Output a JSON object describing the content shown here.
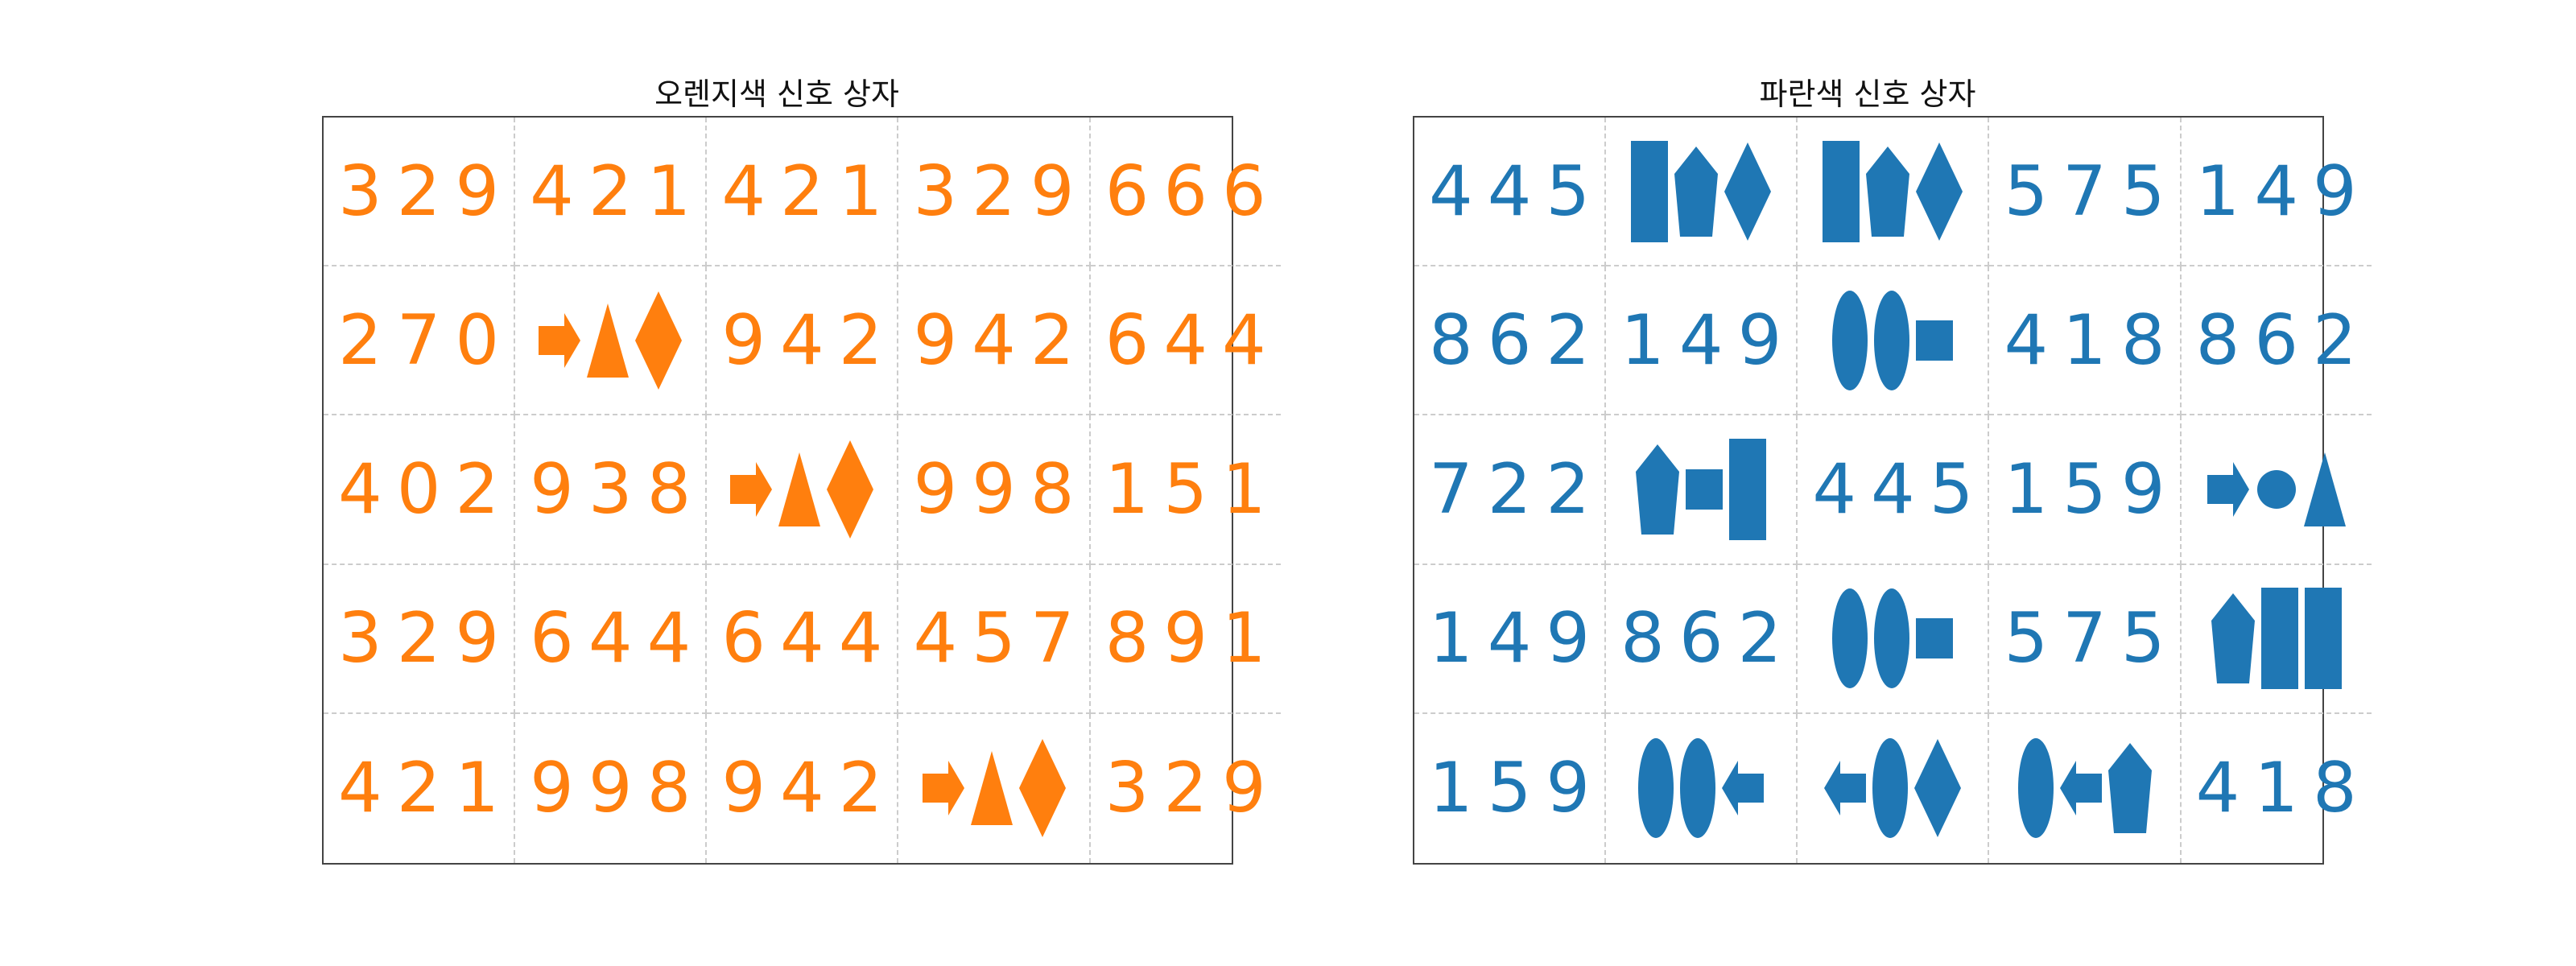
{
  "panels": [
    {
      "id": "orange",
      "title": "오렌지색 신호 상자",
      "color": "#ff7f0e",
      "grid": [
        [
          {
            "text": "329"
          },
          {
            "text": "421"
          },
          {
            "text": "421"
          },
          {
            "text": "329"
          },
          {
            "text": "666"
          }
        ],
        [
          {
            "text": "270"
          },
          {
            "shapes": [
              "arrow-right",
              "triangle",
              "diamond"
            ]
          },
          {
            "text": "942"
          },
          {
            "text": "942"
          },
          {
            "text": "644"
          }
        ],
        [
          {
            "text": "402"
          },
          {
            "text": "938"
          },
          {
            "shapes": [
              "arrow-right",
              "triangle",
              "diamond"
            ]
          },
          {
            "text": "998"
          },
          {
            "text": "151"
          }
        ],
        [
          {
            "text": "329"
          },
          {
            "text": "644"
          },
          {
            "text": "644"
          },
          {
            "text": "457"
          },
          {
            "text": "891"
          }
        ],
        [
          {
            "text": "421"
          },
          {
            "text": "998"
          },
          {
            "text": "942"
          },
          {
            "shapes": [
              "arrow-right",
              "triangle",
              "diamond"
            ]
          },
          {
            "text": "329"
          }
        ]
      ]
    },
    {
      "id": "blue",
      "title": "파란색 신호 상자",
      "color": "#1f77b4",
      "grid": [
        [
          {
            "text": "445"
          },
          {
            "shapes": [
              "tall-rect",
              "pentagon",
              "diamond"
            ]
          },
          {
            "shapes": [
              "tall-rect",
              "pentagon",
              "diamond"
            ]
          },
          {
            "text": "575"
          },
          {
            "text": "149"
          }
        ],
        [
          {
            "text": "862"
          },
          {
            "text": "149"
          },
          {
            "shapes": [
              "ellipse",
              "ellipse",
              "square"
            ]
          },
          {
            "text": "418"
          },
          {
            "text": "862"
          }
        ],
        [
          {
            "text": "722"
          },
          {
            "shapes": [
              "pentagon",
              "square",
              "tall-rect"
            ]
          },
          {
            "text": "445"
          },
          {
            "text": "159"
          },
          {
            "shapes": [
              "arrow-right",
              "circle",
              "triangle"
            ]
          }
        ],
        [
          {
            "text": "149"
          },
          {
            "text": "862"
          },
          {
            "shapes": [
              "ellipse",
              "ellipse",
              "square"
            ]
          },
          {
            "text": "575"
          },
          {
            "shapes": [
              "pentagon",
              "tall-rect",
              "tall-rect"
            ]
          }
        ],
        [
          {
            "text": "159"
          },
          {
            "shapes": [
              "ellipse",
              "ellipse",
              "arrow-left"
            ]
          },
          {
            "shapes": [
              "arrow-left",
              "ellipse",
              "diamond"
            ]
          },
          {
            "shapes": [
              "ellipse",
              "arrow-left",
              "pentagon"
            ]
          },
          {
            "text": "418"
          }
        ]
      ]
    }
  ]
}
